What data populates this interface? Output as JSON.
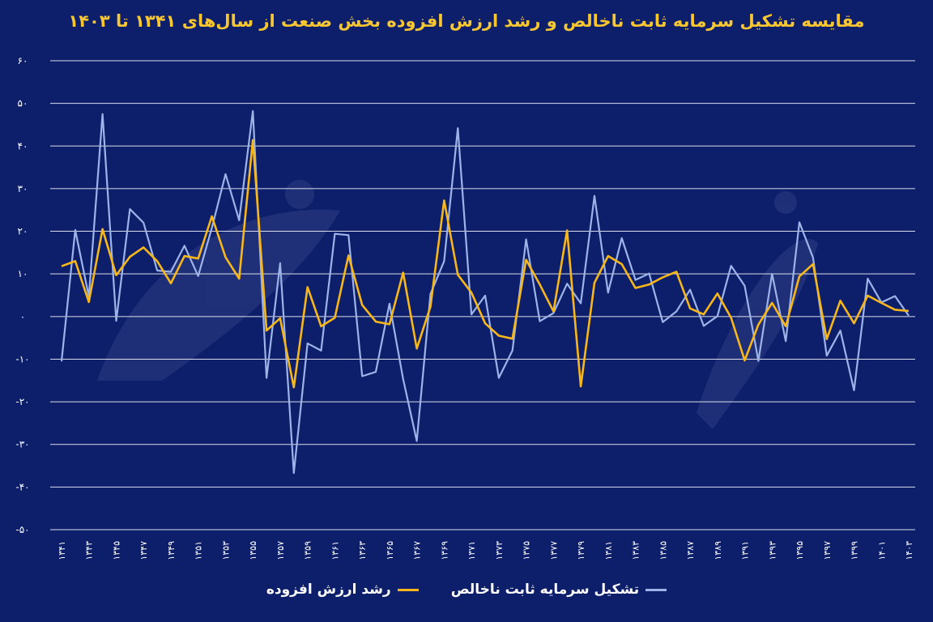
{
  "chart_data": {
    "type": "line",
    "title": "مقایسه تشکیل سرمایه ثابت ناخالص و رشد ارزش افزوده بخش صنعت از سال‌های ۱۳۴۱ تا ۱۴۰۳",
    "xlabel": "",
    "ylabel": "",
    "ylim": [
      -50,
      60
    ],
    "y_ticks": [
      60,
      50,
      40,
      30,
      20,
      10,
      0,
      -10,
      -20,
      -30,
      -40,
      -50
    ],
    "y_tick_labels": [
      "۶۰",
      "۵۰",
      "۴۰",
      "۳۰",
      "۲۰",
      "۱۰",
      "۰",
      "-۱۰",
      "-۲۰",
      "-۳۰",
      "-۴۰",
      "-۵۰"
    ],
    "grid": true,
    "legend_position": "bottom",
    "x": [
      1341,
      1342,
      1343,
      1344,
      1345,
      1346,
      1347,
      1348,
      1349,
      1350,
      1351,
      1352,
      1353,
      1354,
      1355,
      1356,
      1357,
      1358,
      1359,
      1360,
      1361,
      1362,
      1363,
      1364,
      1365,
      1366,
      1367,
      1368,
      1369,
      1370,
      1371,
      1372,
      1373,
      1374,
      1375,
      1376,
      1377,
      1378,
      1379,
      1380,
      1381,
      1382,
      1383,
      1384,
      1385,
      1386,
      1387,
      1388,
      1389,
      1390,
      1391,
      1392,
      1393,
      1394,
      1395,
      1396,
      1397,
      1398,
      1399,
      1400,
      1401,
      1402,
      1403
    ],
    "x_tick_labels": [
      "۱۳۴۱",
      "۱۳۴۳",
      "۱۳۴۵",
      "۱۳۴۷",
      "۱۳۴۹",
      "۱۳۵۱",
      "۱۳۵۳",
      "۱۳۵۵",
      "۱۳۵۷",
      "۱۳۵۹",
      "۱۳۶۱",
      "۱۳۶۳",
      "۱۳۶۵",
      "۱۳۶۷",
      "۱۳۶۹",
      "۱۳۷۱",
      "۱۳۷۳",
      "۱۳۷۵",
      "۱۳۷۷",
      "۱۳۷۹",
      "۱۳۸۱",
      "۱۳۸۳",
      "۱۳۸۵",
      "۱۳۸۷",
      "۱۳۸۹",
      "۱۳۹۱",
      "۱۳۹۳",
      "۱۳۹۵",
      "۱۳۹۷",
      "۱۳۹۹",
      "۱۴۰۱",
      "۱۴۰۳"
    ],
    "x_tick_every": 2,
    "series": [
      {
        "name": "تشکیل سرمایه ثابت ناخالص",
        "color": "#9db4e8",
        "values": [
          -10.5,
          20.3,
          4.7,
          47.5,
          -1,
          25.2,
          22,
          10.8,
          10.5,
          16.6,
          9.5,
          20.8,
          33.4,
          22.6,
          48.2,
          -14.4,
          12.5,
          -36.7,
          -6.3,
          -8,
          19.4,
          19.1,
          -14,
          -13,
          3,
          -14.7,
          -29.2,
          5.3,
          13,
          44.2,
          0.5,
          4.9,
          -14.4,
          -8,
          18.1,
          -1.1,
          0.8,
          7.7,
          3.1,
          28.3,
          5.6,
          18.4,
          8.6,
          10.1,
          -1.3,
          1.2,
          6.3,
          -2.2,
          0.1,
          11.9,
          7.2,
          -10.4,
          10,
          -5.8,
          22.1,
          13.8,
          -9.2,
          -3.3,
          -17.3,
          8.9,
          3.3,
          4.8,
          0.2
        ]
      },
      {
        "name": "رشد ارزش افزوده",
        "color": "#f7b71b",
        "values": [
          11.8,
          13,
          3.4,
          20.5,
          9.7,
          14,
          16.2,
          13,
          7.8,
          14.2,
          13.6,
          23.5,
          13.9,
          8.9,
          41.4,
          -3.3,
          -0.4,
          -16.6,
          6.9,
          -2.3,
          -0.3,
          14.3,
          2.7,
          -1.2,
          -1.8,
          10.3,
          -7.5,
          2.3,
          27.2,
          9.8,
          5.6,
          -1.6,
          -4.5,
          -5.2,
          13.3,
          7.5,
          1.2,
          20.2,
          -16.4,
          7.9,
          14.2,
          12.3,
          6.7,
          7.5,
          9.2,
          10.5,
          1.9,
          0.5,
          5.4,
          -0.3,
          -10.3,
          -1.9,
          3.2,
          -2.3,
          9.4,
          12.3,
          -5.3,
          3.7,
          -1.6,
          4.9,
          3.2,
          1.6,
          1.3
        ]
      }
    ]
  }
}
